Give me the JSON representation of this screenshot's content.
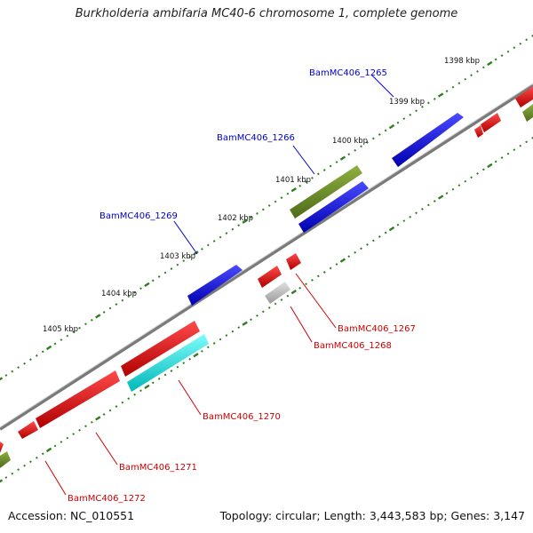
{
  "title": "Burkholderia ambifaria MC40-6 chromosome 1, complete genome",
  "accession_text": "Accession: NC_010551",
  "stats_text": "Topology: circular; Length: 3,443,583 bp; Genes: 3,147",
  "colors": {
    "backbone": "#8a8a8a",
    "tick": "#2e7d1e",
    "forward_gene": "#1010d8",
    "reverse_gene": "#e00000",
    "forward_label": "#0000cc",
    "reverse_label": "#cc0000",
    "olive_gene": "#6b8e23",
    "cyan_gene": "#00e6e6",
    "grey_gene": "#bdbdbd"
  },
  "kbp_labels": [
    "1398 kbp",
    "1399 kbp",
    "1400 kbp",
    "1401 kbp",
    "1402 kbp",
    "1403 kbp",
    "1404 kbp",
    "1405 kbp"
  ],
  "gene_labels": {
    "g1265": "BamMC406_1265",
    "g1266": "BamMC406_1266",
    "g1269": "BamMC406_1269",
    "g1267": "BamMC406_1267",
    "g1268": "BamMC406_1268",
    "g1270": "BamMC406_1270",
    "g1271": "BamMC406_1271",
    "g1272": "BamMC406_1272"
  }
}
